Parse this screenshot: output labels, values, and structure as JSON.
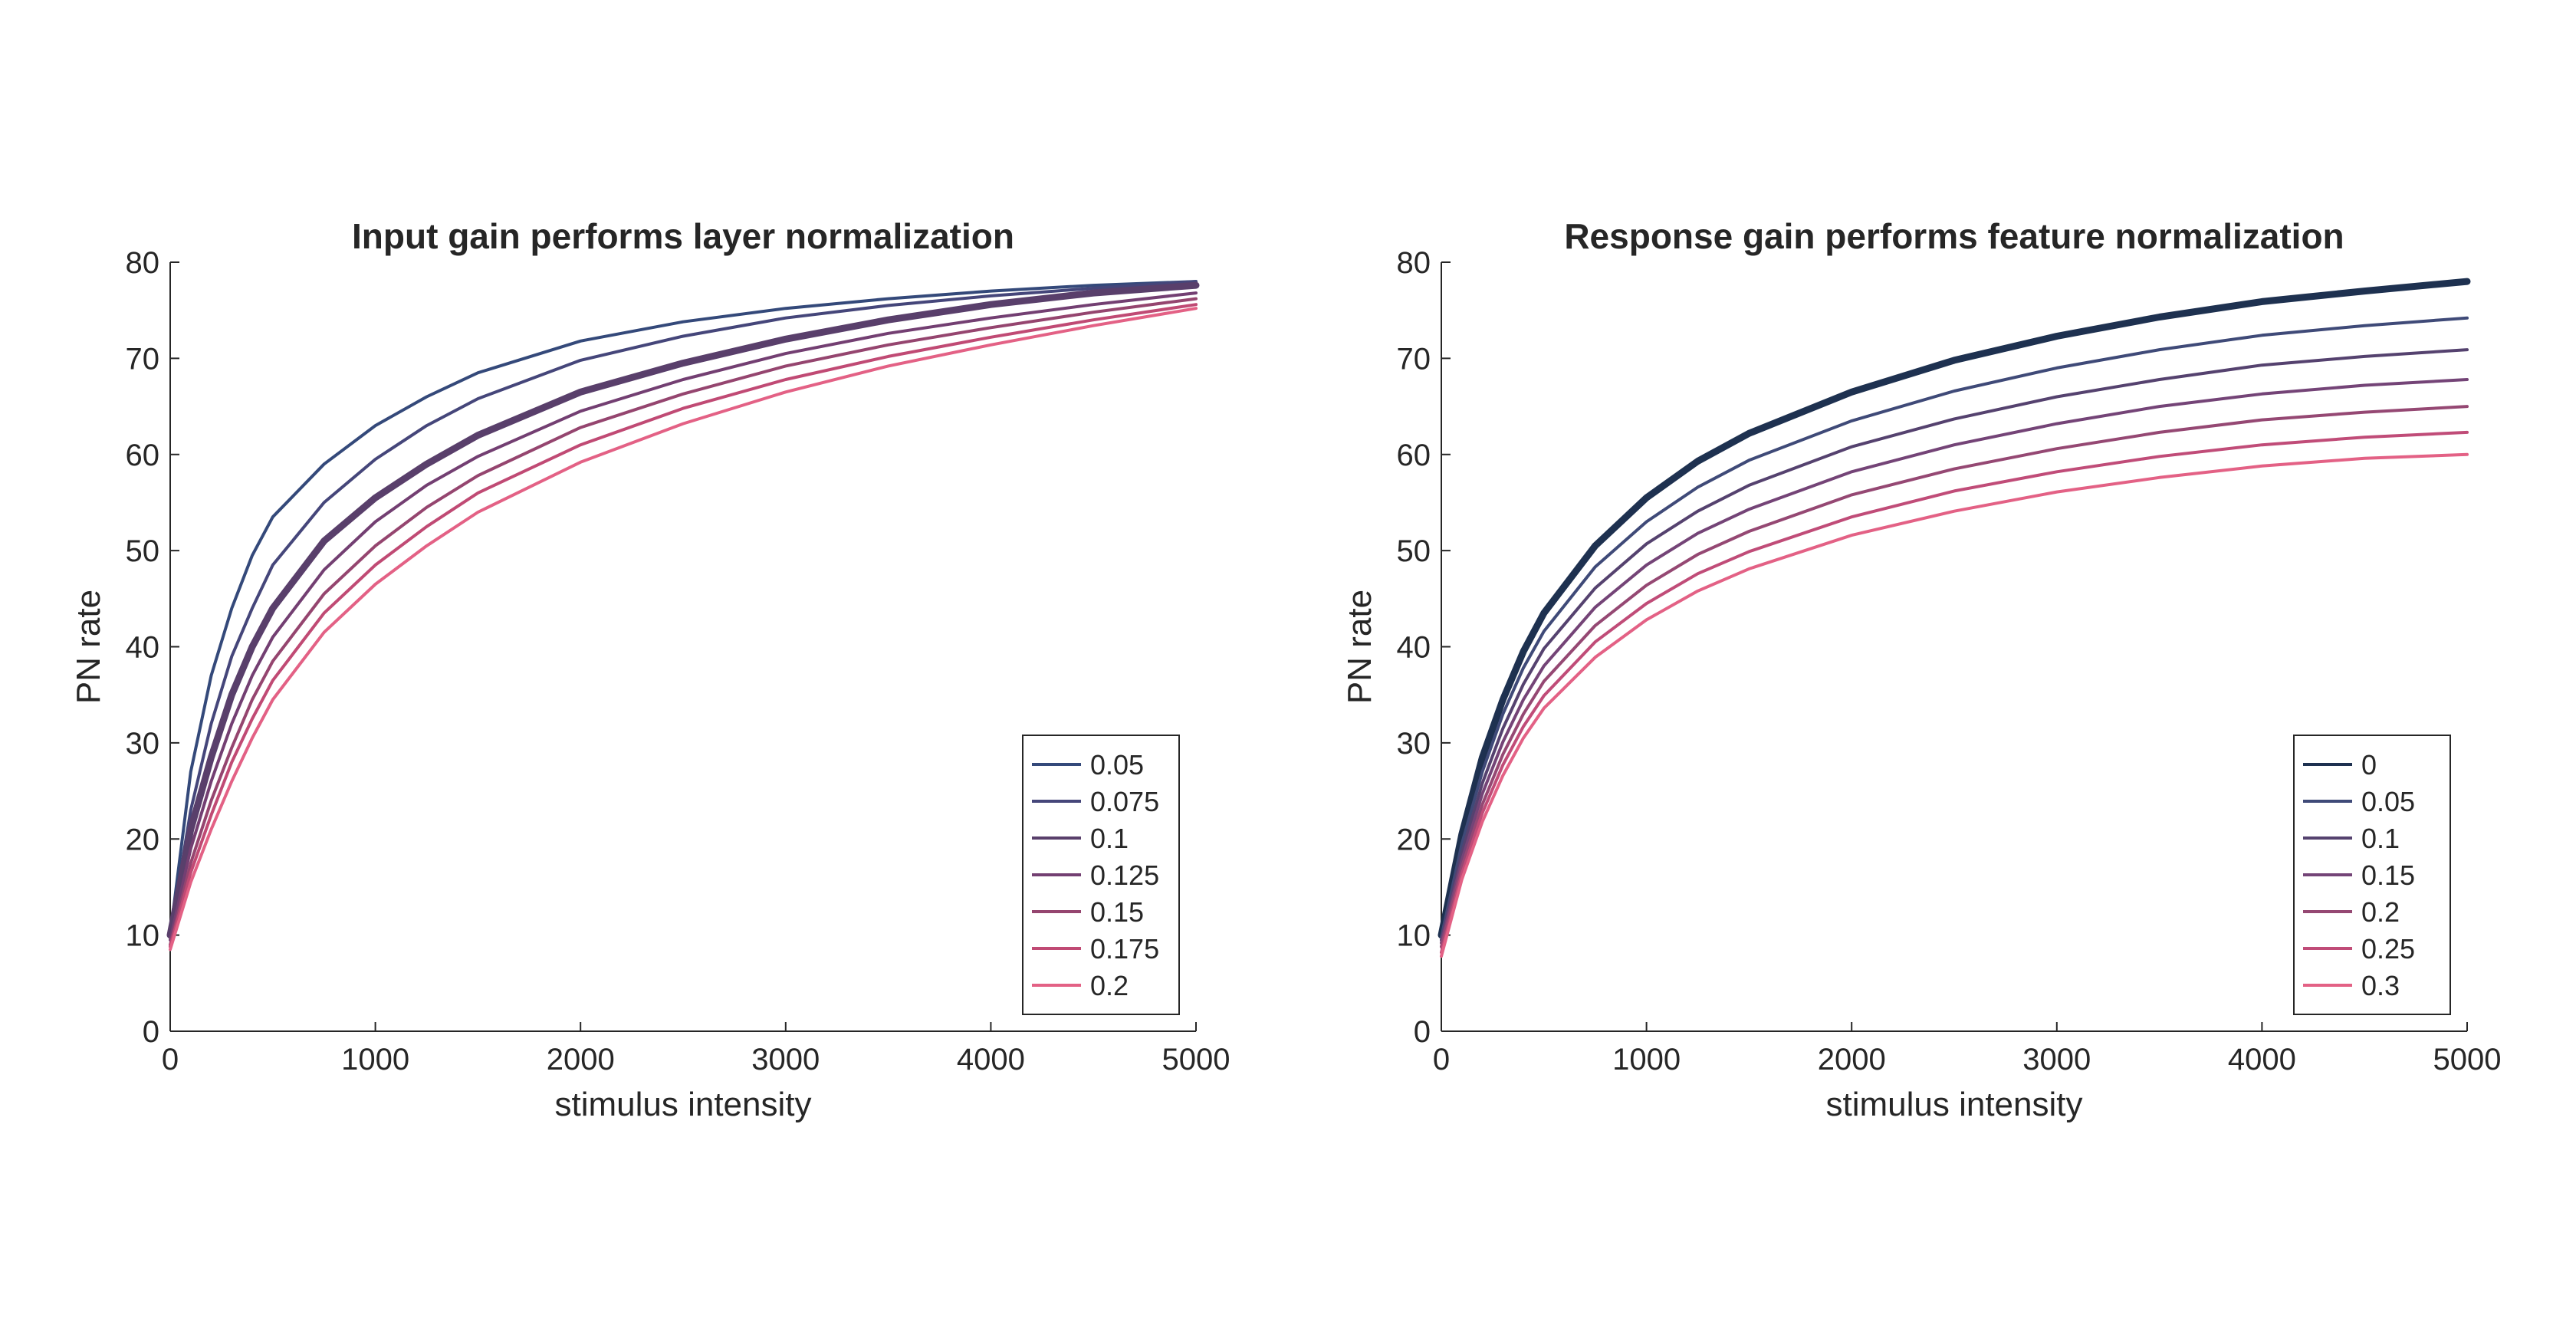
{
  "chart_data": [
    {
      "type": "line",
      "title": "Input gain performs layer normalization",
      "xlabel": "stimulus intensity",
      "ylabel": "PN rate",
      "xlim": [
        0,
        5000
      ],
      "ylim": [
        0,
        80
      ],
      "xticks": [
        0,
        1000,
        2000,
        3000,
        4000,
        5000
      ],
      "yticks": [
        0,
        10,
        20,
        30,
        40,
        50,
        60,
        70,
        80
      ],
      "grid": false,
      "legend_position": "bottom-right",
      "x": [
        0,
        100,
        200,
        300,
        400,
        500,
        750,
        1000,
        1250,
        1500,
        2000,
        2500,
        3000,
        3500,
        4000,
        4500,
        5000
      ],
      "series": [
        {
          "name": "0.05",
          "color": "#34497a",
          "highlight": false,
          "values": [
            10,
            27,
            37,
            44,
            49.5,
            53.5,
            59,
            63,
            66,
            68.5,
            71.8,
            73.8,
            75.2,
            76.2,
            77,
            77.6,
            78
          ]
        },
        {
          "name": "0.075",
          "color": "#45467a",
          "highlight": false,
          "values": [
            10,
            23,
            32,
            39,
            44,
            48.5,
            55,
            59.5,
            63,
            65.8,
            69.8,
            72.3,
            74.2,
            75.5,
            76.5,
            77.3,
            78
          ]
        },
        {
          "name": "0.1",
          "color": "#593f6b",
          "highlight": true,
          "values": [
            10,
            21,
            28.5,
            35,
            40,
            44,
            51,
            55.5,
            59,
            62,
            66.5,
            69.5,
            72,
            74,
            75.6,
            76.8,
            77.6
          ]
        },
        {
          "name": "0.125",
          "color": "#733f72",
          "highlight": false,
          "values": [
            9.5,
            19,
            26,
            32,
            37,
            41,
            48,
            53,
            56.8,
            59.8,
            64.5,
            67.8,
            70.5,
            72.6,
            74.2,
            75.6,
            76.8
          ]
        },
        {
          "name": "0.15",
          "color": "#95456f",
          "highlight": false,
          "values": [
            9,
            17.5,
            24,
            29.5,
            34.5,
            38.5,
            45.5,
            50.5,
            54.5,
            57.8,
            62.8,
            66.3,
            69.2,
            71.4,
            73.2,
            74.8,
            76.2
          ]
        },
        {
          "name": "0.175",
          "color": "#c04a74",
          "highlight": false,
          "values": [
            8.8,
            16.5,
            22.5,
            28,
            32.5,
            36.5,
            43.5,
            48.5,
            52.5,
            56,
            61,
            64.8,
            67.8,
            70.2,
            72.2,
            74,
            75.6
          ]
        },
        {
          "name": "0.2",
          "color": "#e36185",
          "highlight": false,
          "values": [
            8.5,
            15.5,
            21,
            26,
            30.5,
            34.5,
            41.5,
            46.5,
            50.5,
            54,
            59.2,
            63.2,
            66.5,
            69.2,
            71.4,
            73.4,
            75.2
          ]
        }
      ]
    },
    {
      "type": "line",
      "title": "Response gain performs feature normalization",
      "xlabel": "stimulus intensity",
      "ylabel": "PN rate",
      "xlim": [
        0,
        5000
      ],
      "ylim": [
        0,
        80
      ],
      "xticks": [
        0,
        1000,
        2000,
        3000,
        4000,
        5000
      ],
      "yticks": [
        0,
        10,
        20,
        30,
        40,
        50,
        60,
        70,
        80
      ],
      "grid": false,
      "legend_position": "bottom-right",
      "x": [
        0,
        100,
        200,
        300,
        400,
        500,
        750,
        1000,
        1250,
        1500,
        2000,
        2500,
        3000,
        3500,
        4000,
        4500,
        5000
      ],
      "series": [
        {
          "name": "0",
          "color": "#1e3150",
          "highlight": true,
          "values": [
            10,
            20.5,
            28.5,
            34.5,
            39.5,
            43.5,
            50.5,
            55.5,
            59.3,
            62.2,
            66.5,
            69.8,
            72.3,
            74.3,
            75.9,
            77,
            78
          ]
        },
        {
          "name": "0.05",
          "color": "#3f4a78",
          "highlight": false,
          "values": [
            9.8,
            19.5,
            27,
            33,
            37.8,
            41.6,
            48.3,
            53,
            56.6,
            59.4,
            63.5,
            66.6,
            69,
            70.9,
            72.4,
            73.4,
            74.2
          ]
        },
        {
          "name": "0.1",
          "color": "#55426f",
          "highlight": false,
          "values": [
            9.5,
            18.6,
            25.8,
            31.5,
            36.1,
            39.8,
            46.1,
            50.7,
            54.1,
            56.8,
            60.8,
            63.7,
            66,
            67.8,
            69.3,
            70.2,
            70.9
          ]
        },
        {
          "name": "0.15",
          "color": "#744477",
          "highlight": false,
          "values": [
            9.2,
            17.8,
            24.7,
            30.1,
            34.5,
            38,
            44.1,
            48.5,
            51.8,
            54.3,
            58.2,
            61,
            63.2,
            65,
            66.3,
            67.2,
            67.8
          ]
        },
        {
          "name": "0.2",
          "color": "#954873",
          "highlight": false,
          "values": [
            8.8,
            17.1,
            23.6,
            28.8,
            33,
            36.4,
            42.2,
            46.4,
            49.6,
            52,
            55.8,
            58.5,
            60.6,
            62.3,
            63.6,
            64.4,
            65
          ]
        },
        {
          "name": "0.25",
          "color": "#c04c78",
          "highlight": false,
          "values": [
            8.2,
            16.4,
            22.7,
            27.7,
            31.7,
            34.9,
            40.5,
            44.5,
            47.6,
            49.9,
            53.5,
            56.2,
            58.2,
            59.8,
            61,
            61.8,
            62.3
          ]
        },
        {
          "name": "0.3",
          "color": "#e36185",
          "highlight": false,
          "values": [
            7.8,
            15.8,
            21.8,
            26.6,
            30.5,
            33.6,
            38.9,
            42.8,
            45.8,
            48.1,
            51.6,
            54.1,
            56.1,
            57.6,
            58.8,
            59.6,
            60
          ]
        }
      ]
    }
  ]
}
